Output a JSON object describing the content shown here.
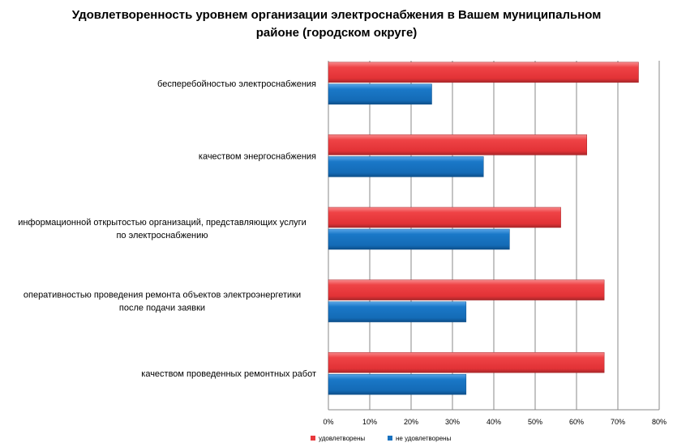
{
  "chart_data": {
    "type": "bar",
    "orientation": "horizontal",
    "title": "Удовлетворенность уровнем организации электроснабжения в Вашем муниципальном районе (городском округе)",
    "categories": [
      [
        "бесперебойностью электроснабжения"
      ],
      [
        "качеством энергоснабжения"
      ],
      [
        "информационной открытостью организаций, представляющих услуги",
        "по электроснабжению"
      ],
      [
        "оперативностью проведения  ремонта объектов  электроэнергетики",
        "после подачи заявки"
      ],
      [
        "качеством проведенных ремонтных работ"
      ]
    ],
    "series": [
      {
        "name": "удовлетворены",
        "color": "#e8393d",
        "values": [
          75,
          62.5,
          56.2,
          66.7,
          66.7
        ]
      },
      {
        "name": "не удовлетворены",
        "color": "#1a72c0",
        "values": [
          25,
          37.5,
          43.8,
          33.3,
          33.3
        ]
      }
    ],
    "xlim": [
      0,
      80
    ],
    "xticks": [
      "0%",
      "10%",
      "20%",
      "30%",
      "40%",
      "50%",
      "60%",
      "70%",
      "80%"
    ],
    "grid": true,
    "legend": "bottom"
  }
}
